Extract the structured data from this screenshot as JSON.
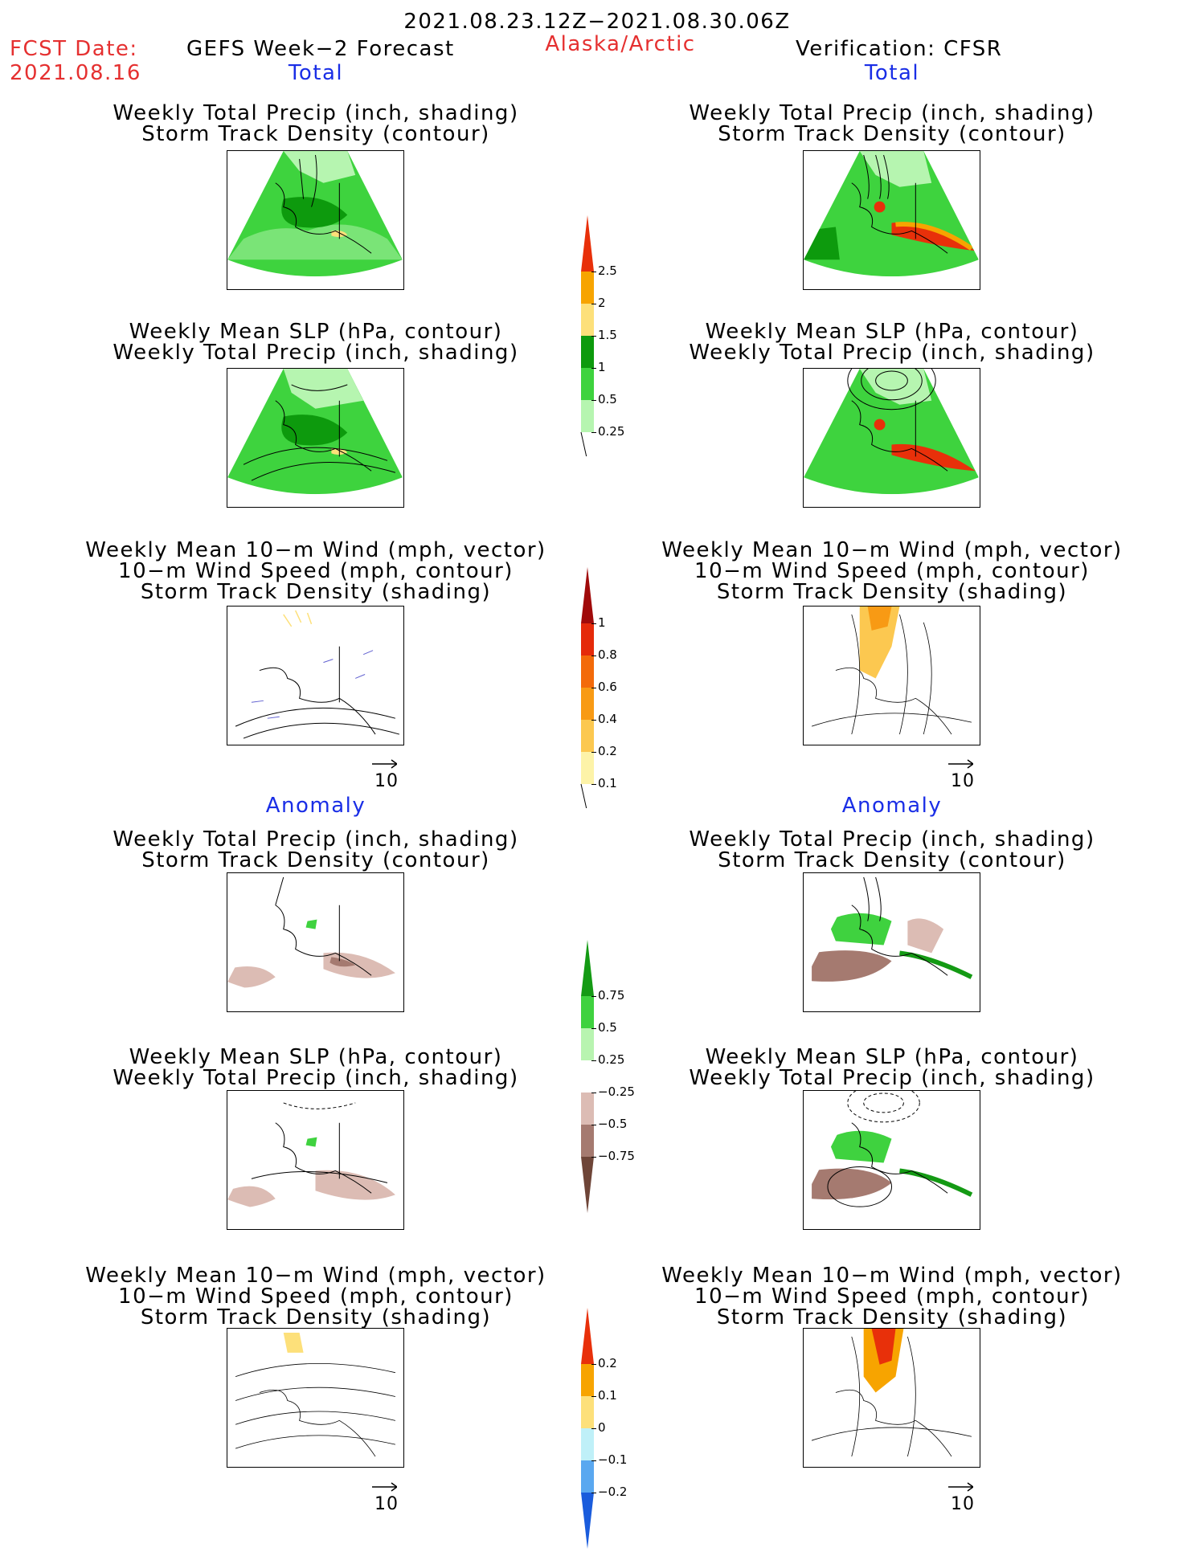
{
  "header": {
    "date_range": "2021.08.23.12Z−2021.08.30.06Z",
    "fcst_label": "FCST Date:",
    "fcst_date": "2021.08.16",
    "model_title": "GEFS Week−2 Forecast",
    "region": "Alaska/Arctic",
    "verification": "Verification: CFSR"
  },
  "sections": {
    "total_left": "Total",
    "total_right": "Total",
    "anomaly_left": "Anomaly",
    "anomaly_right": "Anomaly"
  },
  "panel_titles": {
    "precip_track": [
      "Weekly Total Precip (inch, shading)",
      "Storm Track Density (contour)"
    ],
    "slp_precip": [
      "Weekly Mean SLP (hPa, contour)",
      "Weekly Total Precip (inch, shading)"
    ],
    "wind_track": [
      "Weekly Mean 10−m Wind (mph, vector)",
      "10−m Wind Speed (mph, contour)",
      "Storm Track Density (shading)"
    ]
  },
  "vector_ref": "10",
  "colorbars": {
    "total_precip": {
      "labels": [
        "2.5",
        "2",
        "1.5",
        "1",
        "0.5",
        "0.25"
      ],
      "colors": [
        "#e8300a",
        "#f7a400",
        "#fde07a",
        "#0d9a0d",
        "#3ed33e",
        "#b6f5b0"
      ]
    },
    "total_track": {
      "labels": [
        "1",
        "0.8",
        "0.6",
        "0.4",
        "0.2",
        "0.1"
      ],
      "colors": [
        "#a00a0a",
        "#e52a0a",
        "#f36a0a",
        "#f89a14",
        "#fcc850",
        "#fdf3a8"
      ]
    },
    "anom_precip": {
      "labels": [
        "0.75",
        "0.5",
        "0.25",
        "−0.25",
        "−0.5",
        "−0.75"
      ],
      "colors": [
        "#149a14",
        "#3fd23f",
        "#b8f4b0",
        "#ffffff",
        "#dcbcb4",
        "#a57a70",
        "#6e4538"
      ]
    },
    "anom_track": {
      "labels": [
        "0.2",
        "0.1",
        "0",
        "−0.1",
        "−0.2"
      ],
      "colors": [
        "#e8300a",
        "#f7a400",
        "#fde07a",
        "#bff0f8",
        "#5aa8f0",
        "#1a5cdc"
      ]
    }
  }
}
